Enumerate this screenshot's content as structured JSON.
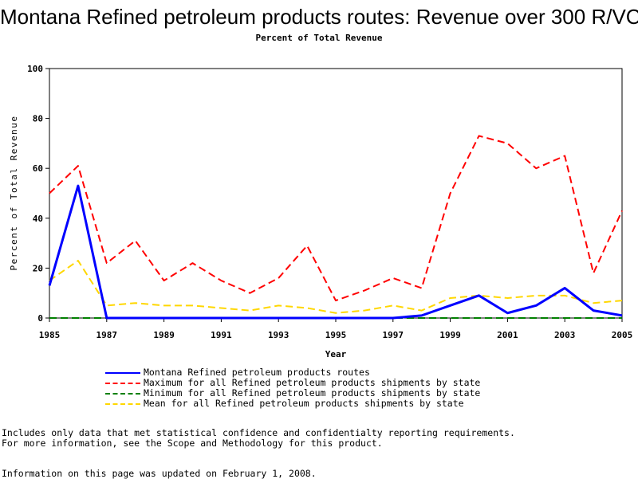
{
  "chart_data": {
    "type": "line",
    "title": "Montana Refined petroleum products routes: Revenue over 300 R/VC",
    "subtitle": "Percent of Total Revenue",
    "xlabel": "Year",
    "ylabel": "Percent of Total Revenue",
    "xlim": [
      1985,
      2005
    ],
    "ylim": [
      0,
      100
    ],
    "x_ticks": [
      "1985",
      "1987",
      "1989",
      "1991",
      "1993",
      "1995",
      "1997",
      "1999",
      "2001",
      "2003",
      "2005"
    ],
    "y_ticks": [
      "0",
      "20",
      "40",
      "60",
      "80",
      "100"
    ],
    "grid": false,
    "legend_position": "bottom",
    "x": [
      1985,
      1986,
      1987,
      1988,
      1989,
      1990,
      1991,
      1992,
      1993,
      1994,
      1995,
      1996,
      1997,
      1998,
      1999,
      2000,
      2001,
      2002,
      2003,
      2004,
      2005
    ],
    "series": [
      {
        "name": "Montana Refined petroleum products routes",
        "color": "#0000ff",
        "style": "solid",
        "values": [
          13,
          53,
          0,
          0,
          0,
          0,
          0,
          0,
          0,
          0,
          0,
          0,
          0,
          1,
          5,
          9,
          2,
          5,
          12,
          3,
          1
        ]
      },
      {
        "name": "Maximum for all Refined petroleum products shipments by state",
        "color": "#ff0000",
        "style": "dashed",
        "values": [
          50,
          61,
          22,
          31,
          15,
          22,
          15,
          10,
          16,
          29,
          7,
          11,
          16,
          12,
          50,
          73,
          70,
          60,
          65,
          18,
          43
        ]
      },
      {
        "name": "Minimum for all Refined petroleum products shipments by state",
        "color": "#008000",
        "style": "dashed",
        "values": [
          0,
          0,
          0,
          0,
          0,
          0,
          0,
          0,
          0,
          0,
          0,
          0,
          0,
          0,
          0,
          0,
          0,
          0,
          0,
          0,
          0
        ]
      },
      {
        "name": "Mean for all Refined petroleum products shipments by state",
        "color": "#ffd700",
        "style": "dashed",
        "values": [
          15,
          23,
          5,
          6,
          5,
          5,
          4,
          3,
          5,
          4,
          2,
          3,
          5,
          3,
          8,
          9,
          8,
          9,
          9,
          6,
          7
        ]
      }
    ]
  },
  "notes": {
    "line1": "Includes only data that met statistical confidence and confidentialty reporting requirements.",
    "line2": "For more information, see the Scope and Methodology for this product.",
    "line3": "Information on this page was updated on February 1, 2008."
  }
}
